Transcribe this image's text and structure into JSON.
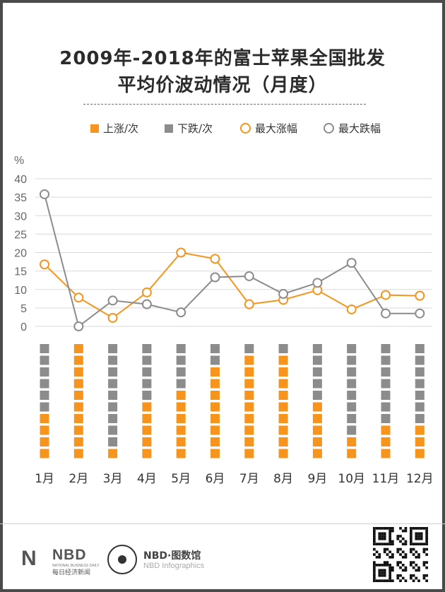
{
  "title_line1": "2009年-2018年的富士苹果全国批发",
  "title_line2": "平均价波动情况（月度）",
  "legend": {
    "up_count": "上涨/次",
    "down_count": "下跌/次",
    "max_rise": "最大涨幅",
    "max_fall": "最大跌幅"
  },
  "footer": {
    "brand_mark": "N",
    "brand": "NBD",
    "brand_sub_en": "NATIONAL BUSINESS DAILY",
    "brand_sub_cn": "每日经济新闻",
    "infographics_name": "NBD·图数馆",
    "infographics_en": "NBD Infographics"
  },
  "colors": {
    "up": "#f7941d",
    "down": "#8c8c8c",
    "rise_line": "#f7941d",
    "fall_line": "#8c8c8c",
    "grid": "#d9d9d9",
    "axis_text": "#666666"
  },
  "chart_data": {
    "type": "line",
    "y_unit": "%",
    "ylim": [
      0,
      40
    ],
    "y_ticks": [
      0,
      5,
      10,
      15,
      20,
      25,
      30,
      35,
      40
    ],
    "grid": true,
    "legend_position": "top",
    "categories": [
      "1月",
      "2月",
      "3月",
      "4月",
      "5月",
      "6月",
      "7月",
      "8月",
      "9月",
      "10月",
      "11月",
      "12月"
    ],
    "series": [
      {
        "name": "最大涨幅",
        "values": [
          16.8,
          7.8,
          2.3,
          9.2,
          20.0,
          18.3,
          6.0,
          7.2,
          9.8,
          4.6,
          8.5,
          8.3
        ]
      },
      {
        "name": "最大跌幅",
        "values": [
          35.8,
          0.0,
          7.0,
          6.0,
          3.8,
          13.3,
          13.6,
          8.8,
          11.8,
          17.2,
          3.5,
          3.5
        ]
      }
    ],
    "counts": {
      "max": 10,
      "up": [
        4,
        10,
        1,
        5,
        6,
        8,
        9,
        9,
        5,
        2,
        3,
        3
      ],
      "down": [
        6,
        0,
        9,
        5,
        4,
        2,
        1,
        1,
        5,
        8,
        7,
        7
      ]
    }
  }
}
